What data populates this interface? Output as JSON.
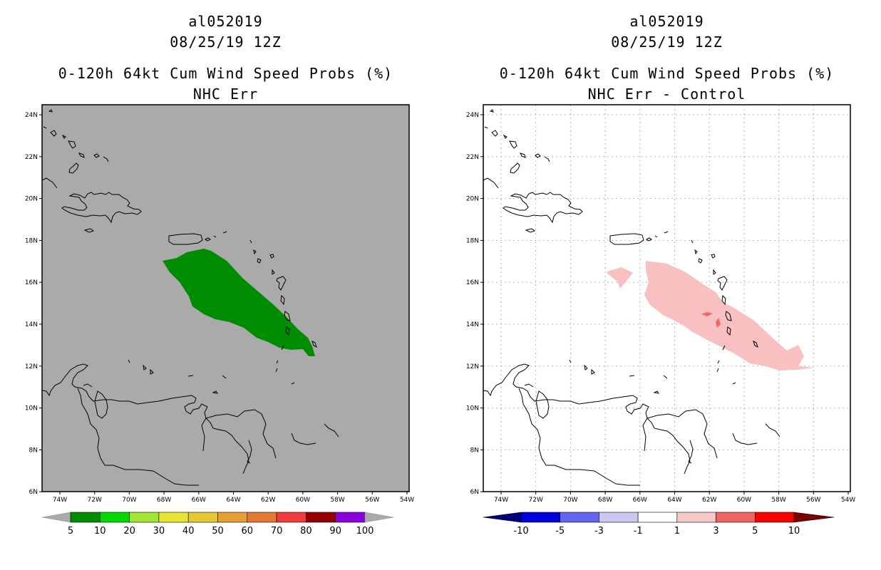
{
  "left_panel": {
    "storm_id": "al052019",
    "datetime": "08/25/19 12Z",
    "product": "0-120h 64kt Cum Wind Speed Probs (%)",
    "subtitle": "NHC Err",
    "background_color": "#aaaaaa",
    "swath_color": "#008c00",
    "colorbar": {
      "colors": [
        "#008c00",
        "#00dc00",
        "#a0e632",
        "#e6e632",
        "#e6c832",
        "#e6a032",
        "#e67832",
        "#f03c3c",
        "#960000",
        "#8c00dc"
      ],
      "labels": [
        "5",
        "10",
        "20",
        "30",
        "40",
        "50",
        "60",
        "70",
        "80",
        "90",
        "100"
      ]
    }
  },
  "right_panel": {
    "storm_id": "al052019",
    "datetime": "08/25/19 12Z",
    "product": "0-120h 64kt Cum Wind Speed Probs (%)",
    "subtitle": "NHC Err - Control",
    "background_color": "#ffffff",
    "swath_color": "#f8c0c0",
    "peak_color": "#ee6666",
    "colorbar": {
      "colors": [
        "#0000dc",
        "#6464f0",
        "#c8c8f5",
        "#ffffff",
        "#f5c8c8",
        "#f06464",
        "#ff0000"
      ],
      "lower_arrow_color": "#00007d",
      "upper_arrow_color": "#7d0000",
      "labels": [
        "-10",
        "-5",
        "-3",
        "-1",
        "1",
        "3",
        "5",
        "10"
      ]
    }
  },
  "map": {
    "lat_labels": [
      "24N",
      "22N",
      "20N",
      "18N",
      "16N",
      "14N",
      "12N",
      "10N",
      "8N",
      "6N"
    ],
    "lon_labels": [
      "74W",
      "72W",
      "70W",
      "68W",
      "66W",
      "64W",
      "62W",
      "60W",
      "58W",
      "56W",
      "54W"
    ]
  }
}
